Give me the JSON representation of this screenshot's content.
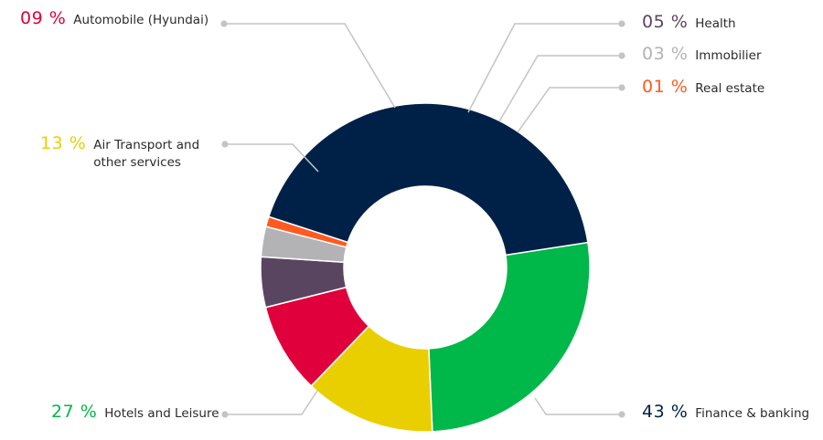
{
  "chart_data": {
    "type": "pie",
    "variant": "donut",
    "start_category": "Finance & banking",
    "direction": "clockwise",
    "slices": [
      {
        "label": "Finance & banking",
        "pct_label": "43 %",
        "value": 43,
        "color": "#002147"
      },
      {
        "label": "Hotels and Leisure",
        "pct_label": "27 %",
        "value": 27,
        "color": "#00b74a"
      },
      {
        "label": "Air Transport and other services",
        "pct_label": "13 %",
        "value": 13,
        "color": "#e9cf00"
      },
      {
        "label": "Automobile (Hyundai)",
        "pct_label": "09 %",
        "value": 9,
        "color": "#e0003c"
      },
      {
        "label": "Health",
        "pct_label": "05 %",
        "value": 5,
        "color": "#5a4560"
      },
      {
        "label": "Immobilier",
        "pct_label": "03 %",
        "value": 3,
        "color": "#b3b3b6"
      },
      {
        "label": "Real estate",
        "pct_label": "01 %",
        "value": 1,
        "color": "#ff5a1f"
      }
    ],
    "leader_line_color": "#c4c4c4"
  }
}
